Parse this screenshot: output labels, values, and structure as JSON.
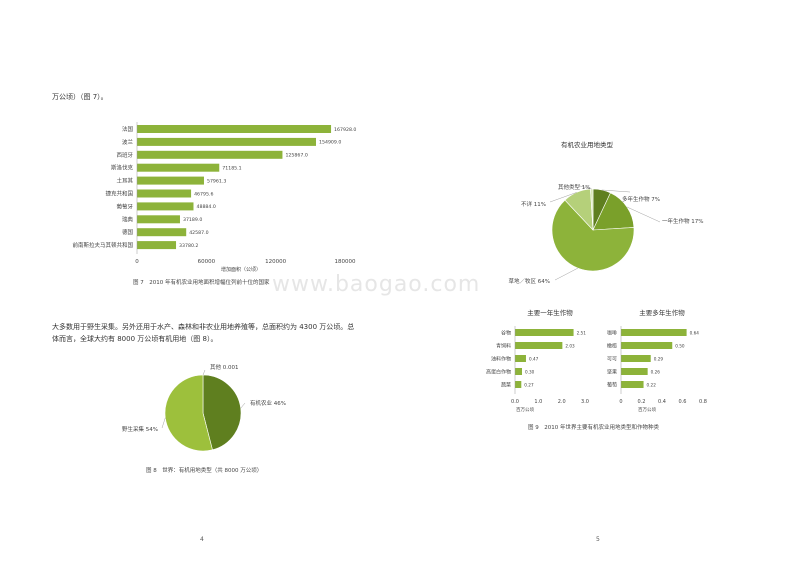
{
  "left_page": {
    "intro_text": "万公顷）（图 7）。",
    "paragraph_line1": "大多数用于野生采集。另外还用于水产、森林和非农业用地养殖等，总面积约为 4300 万公顷。总",
    "paragraph_line2": "体而言，全球大约有 8000 万公顷有机用地（图 8）。",
    "page_number": "4"
  },
  "right_page": {
    "page_number": "5"
  },
  "watermark": "www.baogao.com",
  "chart_data": [
    {
      "id": "fig7",
      "type": "bar",
      "orientation": "horizontal",
      "caption": "图 7　2010 年有机农业用地面积增幅位列前十位的国家",
      "xlabel": "增加面积（公顷）",
      "xlim": [
        0,
        180000
      ],
      "xticks": [
        "0",
        "60000",
        "120000",
        "180000"
      ],
      "categories": [
        "法国",
        "波兰",
        "西班牙",
        "斯洛伐克",
        "土耳其",
        "捷克共和国",
        "葡萄牙",
        "瑞典",
        "德国",
        "前南斯拉夫马其顿共和国"
      ],
      "values": [
        167928.0,
        154909.0,
        125867.0,
        71185.1,
        57961.3,
        46795.6,
        48884.0,
        37189.0,
        42587.0,
        33780.2
      ],
      "data_labels": [
        "167928.0",
        "154909.0",
        "125867.0",
        "71185.1",
        "57961.3",
        "46795.6",
        "48884.0",
        "37189.0",
        "42587.0",
        "33780.2"
      ],
      "color": "#8db33a"
    },
    {
      "id": "fig8",
      "type": "pie",
      "caption": "图 8　世界：有机用地类型（共 8000 万公顷）",
      "labels": [
        "有机农业 46%",
        "野生采集 54%",
        "其他 0.001"
      ],
      "values": [
        46,
        54,
        0.001
      ],
      "colors": [
        "#5f7f1f",
        "#9dc03c",
        "#c8dc8c"
      ]
    },
    {
      "id": "fig9a",
      "type": "pie",
      "title": "有机农业用地类型",
      "labels": [
        "多年生作物 7%",
        "一年生作物 17%",
        "草地／牧区 64%",
        "不详 11%",
        "其他类型 1%"
      ],
      "values": [
        7,
        17,
        64,
        11,
        1
      ],
      "colors": [
        "#5f7f1f",
        "#7aa02a",
        "#8db33a",
        "#b5d07a",
        "#d9e8b5"
      ]
    },
    {
      "id": "fig9b",
      "type": "bar",
      "orientation": "horizontal",
      "title": "主要一年生作物",
      "xlabel": "百万公顷",
      "xlim": [
        0,
        3.0
      ],
      "xticks": [
        "0.0",
        "1.0",
        "2.0",
        "3.0"
      ],
      "categories": [
        "谷物",
        "青饲料",
        "油料作物",
        "高蛋白作物",
        "蔬菜"
      ],
      "values": [
        2.51,
        2.03,
        0.47,
        0.3,
        0.27
      ],
      "data_labels": [
        "2.51",
        "2.03",
        "0.47",
        "0.30",
        "0.27"
      ],
      "color": "#8db33a"
    },
    {
      "id": "fig9c",
      "type": "bar",
      "orientation": "horizontal",
      "title": "主要多年生作物",
      "xlabel": "百万公顷",
      "xlim": [
        0,
        0.8
      ],
      "xticks": [
        "0",
        "0.2",
        "0.4",
        "0.6",
        "0.8"
      ],
      "categories": [
        "咖啡",
        "橄榄",
        "可可",
        "坚果",
        "葡萄"
      ],
      "values": [
        0.64,
        0.5,
        0.29,
        0.26,
        0.22
      ],
      "data_labels": [
        "0.64",
        "0.50",
        "0.29",
        "0.26",
        "0.22"
      ],
      "color": "#8db33a"
    },
    {
      "id": "fig9-caption",
      "type": "caption",
      "caption": "图 9　2010 年世界主要有机农业用地类型和作物种类"
    }
  ]
}
